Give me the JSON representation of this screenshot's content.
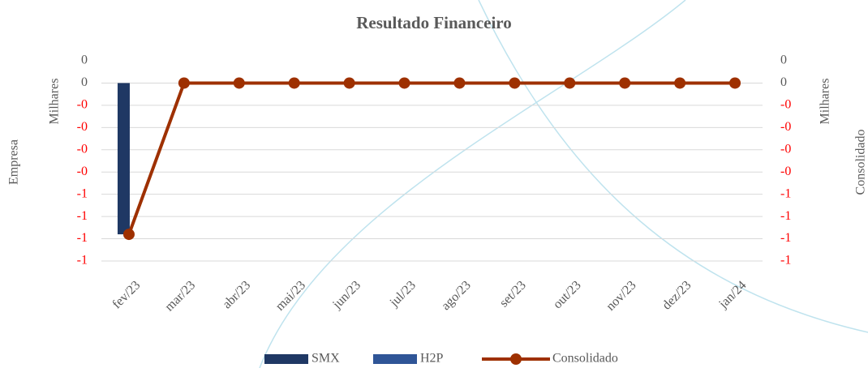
{
  "chart_data": {
    "type": "bar",
    "title": "Resultado Financeiro",
    "y_label": "Empresa",
    "y_units": "Milhares",
    "y2_label": "Consolidado",
    "y2_units": "Milhares",
    "categories": [
      "fev/23",
      "mar/23",
      "abr/23",
      "mai/23",
      "jun/23",
      "jul/23",
      "ago/23",
      "set/23",
      "out/23",
      "nov/23",
      "dez/23",
      "jan/24"
    ],
    "series": [
      {
        "name": "SMX",
        "type": "bar",
        "color": "#1f3864",
        "values": [
          -0.68,
          0,
          0,
          0,
          0,
          0,
          0,
          0,
          0,
          0,
          0,
          0
        ]
      },
      {
        "name": "H2P",
        "type": "bar",
        "color": "#2f5597",
        "values": [
          0,
          0,
          0,
          0,
          0,
          0,
          0,
          0,
          0,
          0,
          0,
          0
        ]
      },
      {
        "name": "Consolidado",
        "type": "line",
        "axis": "y2",
        "color": "#9e3000",
        "values": [
          -0.68,
          0,
          0,
          0,
          0,
          0,
          0,
          0,
          0,
          0,
          0,
          0
        ]
      }
    ],
    "ylim": [
      -0.8,
      0.1
    ],
    "yticks": [
      {
        "value": 0.1,
        "label": "0"
      },
      {
        "value": 0,
        "label": "0"
      },
      {
        "value": -0.1,
        "label": "-0"
      },
      {
        "value": -0.2,
        "label": "-0"
      },
      {
        "value": -0.3,
        "label": "-0"
      },
      {
        "value": -0.4,
        "label": "-0"
      },
      {
        "value": -0.5,
        "label": "-1"
      },
      {
        "value": -0.6,
        "label": "-1"
      },
      {
        "value": -0.7,
        "label": "-1"
      },
      {
        "value": -0.8,
        "label": "-1"
      }
    ],
    "y2lim": [
      -0.8,
      0.1
    ],
    "y2ticks": [
      {
        "value": 0.1,
        "label": "0"
      },
      {
        "value": 0,
        "label": "0"
      },
      {
        "value": -0.1,
        "label": "-0"
      },
      {
        "value": -0.2,
        "label": "-0"
      },
      {
        "value": -0.3,
        "label": "-0"
      },
      {
        "value": -0.4,
        "label": "-0"
      },
      {
        "value": -0.5,
        "label": "-1"
      },
      {
        "value": -0.6,
        "label": "-1"
      },
      {
        "value": -0.7,
        "label": "-1"
      },
      {
        "value": -0.8,
        "label": "-1"
      }
    ],
    "negative_tick_color": "#ff0000",
    "grid": true,
    "legend": "bottom"
  }
}
